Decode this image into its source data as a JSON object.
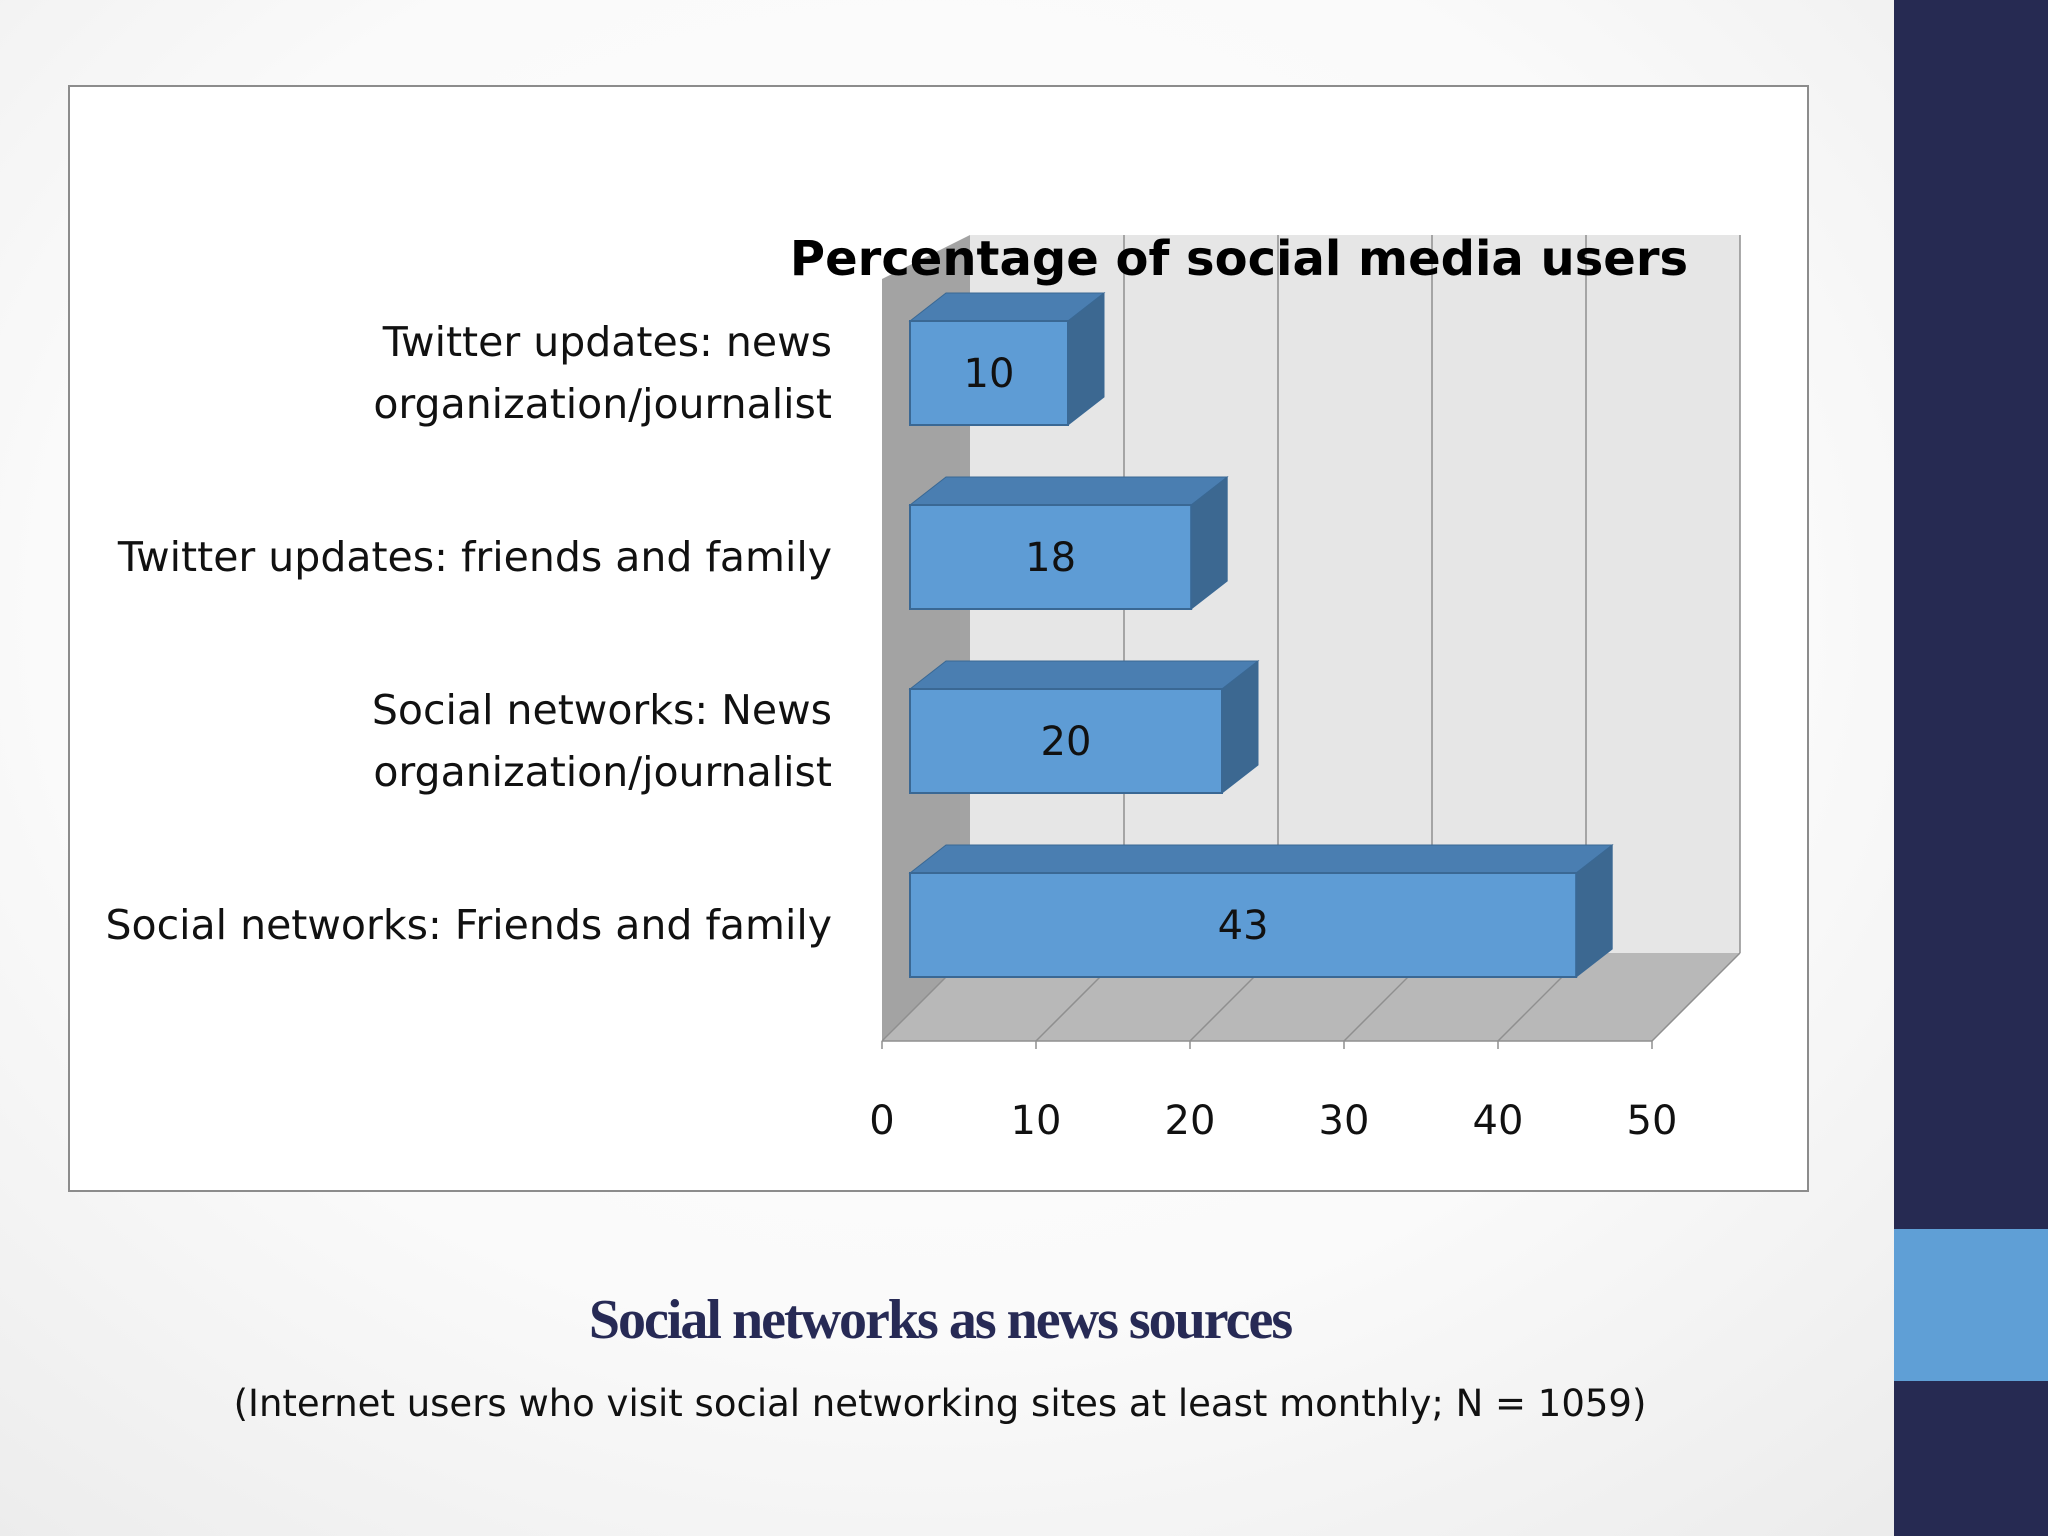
{
  "theme": {
    "band_color": "#262a52",
    "accent_color": "#5f9fd6",
    "bar_front": "#5e9cd5",
    "bar_top": "#4a7eb1",
    "bar_side": "#3c6891",
    "bar_edge": "#3a6894",
    "wall_color": "#e6e6e6",
    "side_wall_color": "#a3a3a3",
    "floor_color": "#b8b8b8",
    "grid_color": "#8f8f8f",
    "caption_color": "#272a55"
  },
  "caption": {
    "title": "Social networks as news sources",
    "subtitle": "(Internet users who visit social networking sites at least monthly; N = 1059)"
  },
  "chart_data": {
    "type": "bar",
    "orientation": "horizontal",
    "style": "3d",
    "title": "Percentage of social media users",
    "categories": [
      [
        "Twitter updates: news",
        "organization/journalist"
      ],
      [
        "Twitter updates: friends and family"
      ],
      [
        "Social networks: News",
        "organization/journalist"
      ],
      [
        "Social networks: Friends and family"
      ]
    ],
    "values": [
      10,
      18,
      20,
      43
    ],
    "data_labels": [
      "10",
      "18",
      "20",
      "43"
    ],
    "xlim": [
      0,
      50
    ],
    "xticks": [
      0,
      10,
      20,
      30,
      40,
      50
    ],
    "xtick_labels": [
      "0",
      "10",
      "20",
      "30",
      "40",
      "50"
    ],
    "grid": true,
    "legend": "none"
  }
}
